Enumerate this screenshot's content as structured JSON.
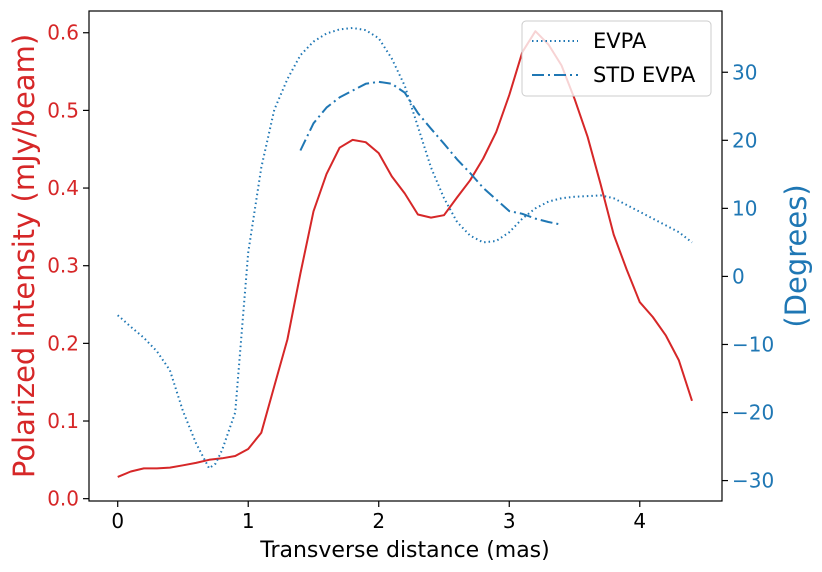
{
  "chart_data": {
    "type": "line",
    "xlabel": "Transverse distance (mas)",
    "ylabel_left": "Polarized intensity (mJy/beam)",
    "ylabel_right": "(Degrees)",
    "xlim": [
      -0.22,
      4.63
    ],
    "ylim_left": [
      -0.003,
      0.628
    ],
    "ylim_right": [
      -33,
      39
    ],
    "x_ticks": [
      0,
      1,
      2,
      3,
      4
    ],
    "y_ticks_left": [
      0.0,
      0.1,
      0.2,
      0.3,
      0.4,
      0.5,
      0.6
    ],
    "y_ticks_right": [
      -30,
      -20,
      -10,
      0,
      10,
      20,
      30
    ],
    "x_tick_labels": [
      "0",
      "1",
      "2",
      "3",
      "4"
    ],
    "y_tick_labels_left": [
      "0.0",
      "0.1",
      "0.2",
      "0.3",
      "0.4",
      "0.5",
      "0.6"
    ],
    "y_tick_labels_right": [
      "−30",
      "−20",
      "−10",
      "0",
      "10",
      "20",
      "30"
    ],
    "grid": false,
    "legend_position": "top-right",
    "colors": {
      "left_axis": "#d62728",
      "right_axis": "#1f77b4"
    },
    "series": [
      {
        "axis": "left",
        "style": "solid",
        "color": "#d62728",
        "x": [
          0.0,
          0.1,
          0.2,
          0.3,
          0.4,
          0.5,
          0.6,
          0.7,
          0.8,
          0.9,
          1.0,
          1.1,
          1.2,
          1.3,
          1.4,
          1.5,
          1.6,
          1.7,
          1.8,
          1.9,
          2.0,
          2.1,
          2.2,
          2.3,
          2.4,
          2.5,
          2.6,
          2.7,
          2.8,
          2.9,
          3.0,
          3.1,
          3.2,
          3.3,
          3.4,
          3.5,
          3.6,
          3.7,
          3.8,
          3.9,
          4.0,
          4.1,
          4.2,
          4.3,
          4.4
        ],
        "y": [
          0.028,
          0.035,
          0.039,
          0.039,
          0.04,
          0.043,
          0.046,
          0.05,
          0.052,
          0.055,
          0.064,
          0.085,
          0.145,
          0.205,
          0.29,
          0.37,
          0.418,
          0.452,
          0.462,
          0.459,
          0.445,
          0.415,
          0.393,
          0.366,
          0.362,
          0.365,
          0.388,
          0.41,
          0.438,
          0.472,
          0.52,
          0.575,
          0.602,
          0.585,
          0.558,
          0.515,
          0.466,
          0.405,
          0.34,
          0.295,
          0.253,
          0.234,
          0.21,
          0.178,
          0.126
        ]
      },
      {
        "name": "EVPA",
        "axis": "right",
        "style": "dotted",
        "color": "#1f77b4",
        "x": [
          0.0,
          0.1,
          0.2,
          0.3,
          0.4,
          0.5,
          0.6,
          0.7,
          0.75,
          0.8,
          0.9,
          1.0,
          1.1,
          1.2,
          1.3,
          1.4,
          1.5,
          1.6,
          1.7,
          1.8,
          1.9,
          2.0,
          2.1,
          2.2,
          2.3,
          2.4,
          2.5,
          2.6,
          2.7,
          2.8,
          2.9,
          3.0,
          3.1,
          3.2,
          3.3,
          3.4,
          3.5,
          3.6,
          3.7,
          3.8,
          3.9,
          4.0,
          4.1,
          4.2,
          4.3,
          4.4
        ],
        "y": [
          -5.7,
          -7.4,
          -9.0,
          -11.0,
          -13.8,
          -19.8,
          -24.5,
          -28.2,
          -27.5,
          -25.5,
          -20.0,
          3.5,
          16.0,
          24.5,
          29.0,
          32.5,
          34.5,
          35.7,
          36.3,
          36.5,
          36.2,
          35.0,
          32.0,
          28.0,
          22.0,
          16.0,
          11.5,
          8.0,
          6.0,
          5.0,
          5.2,
          6.5,
          8.5,
          10.0,
          11.0,
          11.5,
          11.7,
          11.8,
          11.9,
          11.5,
          10.5,
          9.5,
          8.5,
          7.5,
          6.5,
          5.0
        ]
      },
      {
        "name": "STD EVPA",
        "axis": "right",
        "style": "dashdot",
        "color": "#1f77b4",
        "x": [
          1.4,
          1.5,
          1.6,
          1.7,
          1.8,
          1.9,
          2.0,
          2.1,
          2.2,
          2.3,
          2.4,
          2.5,
          2.6,
          2.7,
          2.8,
          2.9,
          3.0,
          3.1,
          3.2,
          3.3,
          3.4
        ],
        "y": [
          18.5,
          22.5,
          24.8,
          26.3,
          27.3,
          28.3,
          28.6,
          28.3,
          27.0,
          24.0,
          21.7,
          19.5,
          17.2,
          15.2,
          13.0,
          11.3,
          9.6,
          9.2,
          8.5,
          8.0,
          7.6
        ]
      }
    ]
  }
}
